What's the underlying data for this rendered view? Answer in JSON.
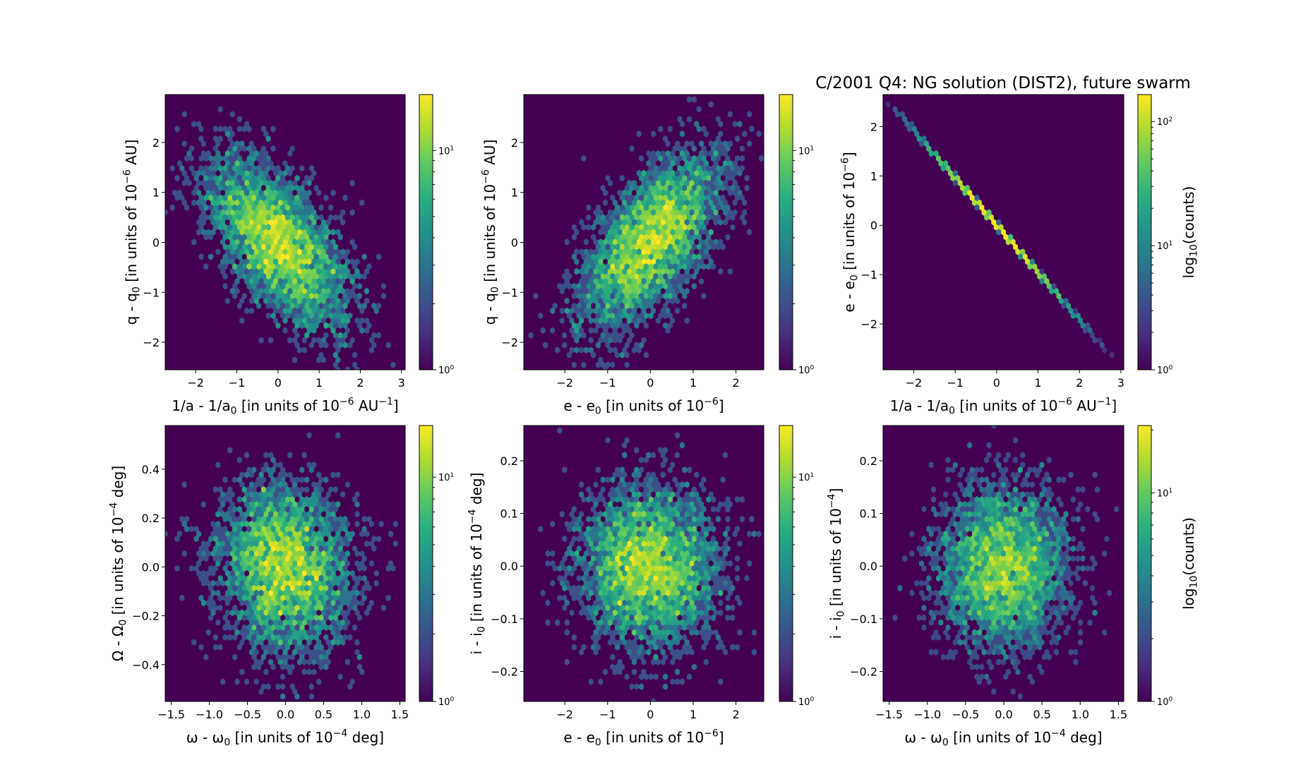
{
  "figure": {
    "title": "C/2001 Q4:  NG solution (DIST2), future swarm"
  },
  "chart_data": [
    {
      "type": "heatmap",
      "style": "hexbin",
      "xlabel": [
        [
          "t",
          "1/a - 1/a"
        ],
        [
          "sub",
          "0"
        ],
        [
          "t",
          " [in units of 10"
        ],
        [
          "sup",
          "−6"
        ],
        [
          "t",
          " AU"
        ],
        [
          "sup",
          "−1"
        ],
        [
          "t",
          "]"
        ]
      ],
      "ylabel": [
        [
          "t",
          "q - q"
        ],
        [
          "sub",
          "0"
        ],
        [
          "t",
          " [in units of 10"
        ],
        [
          "sup",
          "−6"
        ],
        [
          "t",
          " AU]"
        ]
      ],
      "xlim": [
        -2.74,
        3.09
      ],
      "ylim": [
        -2.55,
        2.96
      ],
      "xticks": [
        {
          "v": -2,
          "label": "−2"
        },
        {
          "v": -1,
          "label": "−1"
        },
        {
          "v": 0,
          "label": "0"
        },
        {
          "v": 1,
          "label": "1"
        },
        {
          "v": 2,
          "label": "2"
        },
        {
          "v": 3,
          "label": "3"
        }
      ],
      "yticks": [
        {
          "v": -2,
          "label": "−2"
        },
        {
          "v": -1,
          "label": "−1"
        },
        {
          "v": 0,
          "label": "0"
        },
        {
          "v": 1,
          "label": "1"
        },
        {
          "v": 2,
          "label": "2"
        }
      ],
      "colorbar": {
        "vmax": 18,
        "ticks": [
          {
            "v": 1,
            "base": "10",
            "exp": "0"
          },
          {
            "v": 10,
            "base": "10",
            "exp": "1"
          }
        ],
        "label": null
      },
      "distribution": {
        "n": 4000,
        "mean": [
          0,
          0
        ],
        "sigma": [
          0.85,
          0.85
        ],
        "corr": -0.62,
        "line": false,
        "seed": 11
      },
      "gridsize": 50
    },
    {
      "type": "heatmap",
      "style": "hexbin",
      "xlabel": [
        [
          "t",
          "e - e"
        ],
        [
          "sub",
          "0"
        ],
        [
          "t",
          " [in units of 10"
        ],
        [
          "sup",
          "−6"
        ],
        [
          "t",
          "]"
        ]
      ],
      "ylabel": [
        [
          "t",
          "q - q"
        ],
        [
          "sub",
          "0"
        ],
        [
          "t",
          " [in units of 10"
        ],
        [
          "sup",
          "−6"
        ],
        [
          "t",
          " AU]"
        ]
      ],
      "xlim": [
        -2.96,
        2.65
      ],
      "ylim": [
        -2.55,
        2.96
      ],
      "xticks": [
        {
          "v": -2,
          "label": "−2"
        },
        {
          "v": -1,
          "label": "−1"
        },
        {
          "v": 0,
          "label": "0"
        },
        {
          "v": 1,
          "label": "1"
        },
        {
          "v": 2,
          "label": "2"
        }
      ],
      "yticks": [
        {
          "v": -2,
          "label": "−2"
        },
        {
          "v": -1,
          "label": "−1"
        },
        {
          "v": 0,
          "label": "0"
        },
        {
          "v": 1,
          "label": "1"
        },
        {
          "v": 2,
          "label": "2"
        }
      ],
      "colorbar": {
        "vmax": 18,
        "ticks": [
          {
            "v": 1,
            "base": "10",
            "exp": "0"
          },
          {
            "v": 10,
            "base": "10",
            "exp": "1"
          }
        ],
        "label": null
      },
      "distribution": {
        "n": 4000,
        "mean": [
          0,
          0
        ],
        "sigma": [
          0.8,
          0.85
        ],
        "corr": 0.62,
        "line": false,
        "seed": 23
      },
      "gridsize": 50
    },
    {
      "type": "heatmap",
      "style": "hexbin",
      "xlabel": [
        [
          "t",
          "1/a - 1/a"
        ],
        [
          "sub",
          "0"
        ],
        [
          "t",
          " [in units of 10"
        ],
        [
          "sup",
          "−6"
        ],
        [
          "t",
          " AU"
        ],
        [
          "sup",
          "−1"
        ],
        [
          "t",
          "]"
        ]
      ],
      "ylabel": [
        [
          "t",
          "e - e"
        ],
        [
          "sub",
          "0"
        ],
        [
          "t",
          " [in units of 10"
        ],
        [
          "sup",
          "−6"
        ],
        [
          "t",
          "]"
        ]
      ],
      "xlim": [
        -2.74,
        3.07
      ],
      "ylim": [
        -2.93,
        2.65
      ],
      "xticks": [
        {
          "v": -2,
          "label": "−2"
        },
        {
          "v": -1,
          "label": "−1"
        },
        {
          "v": 0,
          "label": "0"
        },
        {
          "v": 1,
          "label": "1"
        },
        {
          "v": 2,
          "label": "2"
        },
        {
          "v": 3,
          "label": "3"
        }
      ],
      "yticks": [
        {
          "v": -2,
          "label": "−2"
        },
        {
          "v": -1,
          "label": "−1"
        },
        {
          "v": 0,
          "label": "0"
        },
        {
          "v": 1,
          "label": "1"
        },
        {
          "v": 2,
          "label": "2"
        }
      ],
      "colorbar": {
        "vmax": 165,
        "ticks": [
          {
            "v": 1,
            "base": "10",
            "exp": "0"
          },
          {
            "v": 10,
            "base": "10",
            "exp": "1"
          },
          {
            "v": 100,
            "base": "10",
            "exp": "2"
          }
        ],
        "label": [
          [
            "t",
            "log"
          ],
          [
            "sub",
            "10"
          ],
          [
            "t",
            "(counts)"
          ]
        ]
      },
      "distribution": {
        "n": 4000,
        "mean": [
          0,
          0
        ],
        "sigma": [
          0.85,
          0.82
        ],
        "corr": -1,
        "slope": -0.96,
        "line": true,
        "seed": 37
      },
      "gridsize": 50
    },
    {
      "type": "heatmap",
      "style": "hexbin",
      "xlabel": [
        [
          "t",
          "ω - ω"
        ],
        [
          "sub",
          "0"
        ],
        [
          "t",
          " [in units of 10"
        ],
        [
          "sup",
          "−4"
        ],
        [
          "t",
          " deg]"
        ]
      ],
      "ylabel": [
        [
          "t",
          "Ω - Ω"
        ],
        [
          "sub",
          "0"
        ],
        [
          "t",
          " [in units of 10"
        ],
        [
          "sup",
          "−4"
        ],
        [
          "t",
          " deg]"
        ]
      ],
      "xlim": [
        -1.58,
        1.57
      ],
      "ylim": [
        -0.551,
        0.579
      ],
      "xticks": [
        {
          "v": -1.5,
          "label": "−1.5"
        },
        {
          "v": -1,
          "label": "−1.0"
        },
        {
          "v": -0.5,
          "label": "−0.5"
        },
        {
          "v": 0,
          "label": "0.0"
        },
        {
          "v": 0.5,
          "label": "0.5"
        },
        {
          "v": 1,
          "label": "1.0"
        },
        {
          "v": 1.5,
          "label": "1.5"
        }
      ],
      "yticks": [
        {
          "v": -0.4,
          "label": "−0.4"
        },
        {
          "v": -0.2,
          "label": "−0.2"
        },
        {
          "v": 0,
          "label": "0.0"
        },
        {
          "v": 0.2,
          "label": "0.2"
        },
        {
          "v": 0.4,
          "label": "0.4"
        }
      ],
      "colorbar": {
        "vmax": 17,
        "ticks": [
          {
            "v": 1,
            "base": "10",
            "exp": "0"
          },
          {
            "v": 10,
            "base": "10",
            "exp": "1"
          }
        ],
        "label": null
      },
      "distribution": {
        "n": 4000,
        "mean": [
          0,
          0
        ],
        "sigma": [
          0.42,
          0.17
        ],
        "corr": -0.12,
        "line": false,
        "seed": 53
      },
      "gridsize": 50
    },
    {
      "type": "heatmap",
      "style": "hexbin",
      "xlabel": [
        [
          "t",
          "e - e"
        ],
        [
          "sub",
          "0"
        ],
        [
          "t",
          " [in units of 10"
        ],
        [
          "sup",
          "−6"
        ],
        [
          "t",
          "]"
        ]
      ],
      "ylabel": [
        [
          "t",
          "i - i"
        ],
        [
          "sub",
          "0"
        ],
        [
          "t",
          " [in units of 10"
        ],
        [
          "sup",
          "−4"
        ],
        [
          "t",
          " deg]"
        ]
      ],
      "xlim": [
        -2.96,
        2.65
      ],
      "ylim": [
        -0.257,
        0.267
      ],
      "xticks": [
        {
          "v": -2,
          "label": "−2"
        },
        {
          "v": -1,
          "label": "−1"
        },
        {
          "v": 0,
          "label": "0"
        },
        {
          "v": 1,
          "label": "1"
        },
        {
          "v": 2,
          "label": "2"
        }
      ],
      "yticks": [
        {
          "v": -0.2,
          "label": "−0.2"
        },
        {
          "v": -0.1,
          "label": "−0.1"
        },
        {
          "v": 0,
          "label": "0.0"
        },
        {
          "v": 0.1,
          "label": "0.1"
        },
        {
          "v": 0.2,
          "label": "0.2"
        }
      ],
      "colorbar": {
        "vmax": 17,
        "ticks": [
          {
            "v": 1,
            "base": "10",
            "exp": "0"
          },
          {
            "v": 10,
            "base": "10",
            "exp": "1"
          }
        ],
        "label": null
      },
      "distribution": {
        "n": 4000,
        "mean": [
          0,
          0
        ],
        "sigma": [
          0.8,
          0.075
        ],
        "corr": 0,
        "line": false,
        "seed": 71
      },
      "gridsize": 50
    },
    {
      "type": "heatmap",
      "style": "hexbin",
      "xlabel": [
        [
          "t",
          "ω - ω"
        ],
        [
          "sub",
          "0"
        ],
        [
          "t",
          " [in units of 10"
        ],
        [
          "sup",
          "−4"
        ],
        [
          "t",
          " deg]"
        ]
      ],
      "ylabel": [
        [
          "t",
          "i - i"
        ],
        [
          "sub",
          "0"
        ],
        [
          "t",
          " [in units of 10"
        ],
        [
          "sup",
          "−4"
        ],
        [
          "t",
          "]"
        ]
      ],
      "xlim": [
        -1.58,
        1.57
      ],
      "ylim": [
        -0.257,
        0.267
      ],
      "xticks": [
        {
          "v": -1.5,
          "label": "−1.5"
        },
        {
          "v": -1,
          "label": "−1.0"
        },
        {
          "v": -0.5,
          "label": "−0.5"
        },
        {
          "v": 0,
          "label": "0.0"
        },
        {
          "v": 0.5,
          "label": "0.5"
        },
        {
          "v": 1,
          "label": "1.0"
        },
        {
          "v": 1.5,
          "label": "1.5"
        }
      ],
      "yticks": [
        {
          "v": -0.2,
          "label": "−0.2"
        },
        {
          "v": -0.1,
          "label": "−0.1"
        },
        {
          "v": 0,
          "label": "0.0"
        },
        {
          "v": 0.1,
          "label": "0.1"
        },
        {
          "v": 0.2,
          "label": "0.2"
        }
      ],
      "colorbar": {
        "vmax": 21,
        "ticks": [
          {
            "v": 1,
            "base": "10",
            "exp": "0"
          },
          {
            "v": 10,
            "base": "10",
            "exp": "1"
          }
        ],
        "label": [
          [
            "t",
            "log"
          ],
          [
            "sub",
            "10"
          ],
          [
            "t",
            "(counts)"
          ]
        ]
      },
      "distribution": {
        "n": 4000,
        "mean": [
          0,
          0
        ],
        "sigma": [
          0.42,
          0.075
        ],
        "corr": 0,
        "line": false,
        "seed": 97
      },
      "gridsize": 50
    }
  ]
}
